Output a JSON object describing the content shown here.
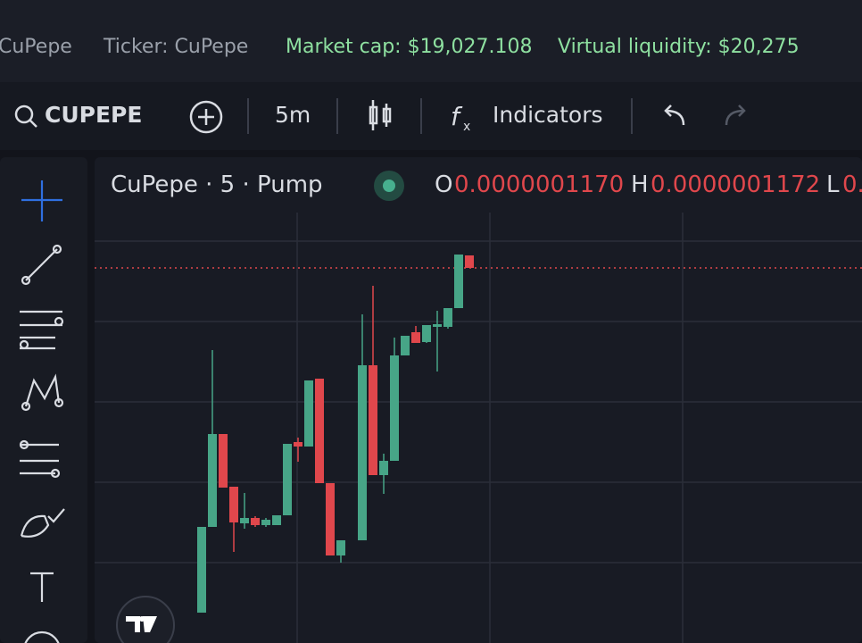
{
  "info": {
    "name": "CuPepe",
    "ticker": "Ticker: CuPepe",
    "market_cap": "Market cap: $19,027.108",
    "virtual_liquidity": "Virtual liquidity: $20,275"
  },
  "toolbar": {
    "symbol": "CUPEPE",
    "interval": "5m",
    "indicators": "Indicators"
  },
  "chart": {
    "title": "CuPepe · 5 · Pump",
    "ohlc": [
      {
        "label": "O",
        "value": "0.0000001170"
      },
      {
        "label": "H",
        "value": "0.0000001172"
      },
      {
        "label": "L",
        "value": "0."
      }
    ]
  }
}
